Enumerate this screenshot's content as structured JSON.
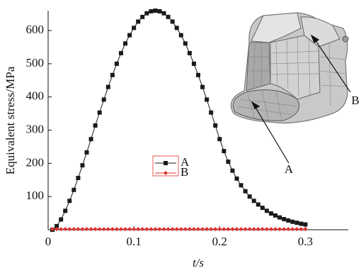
{
  "chart_data": {
    "type": "line",
    "x_label": "t/s",
    "y_label": "Equivalent stress/MPa",
    "x": [
      0.005,
      0.01,
      0.015,
      0.02,
      0.025,
      0.03,
      0.035,
      0.04,
      0.045,
      0.05,
      0.055,
      0.06,
      0.065,
      0.07,
      0.075,
      0.08,
      0.085,
      0.09,
      0.095,
      0.1,
      0.105,
      0.11,
      0.115,
      0.12,
      0.125,
      0.13,
      0.135,
      0.14,
      0.145,
      0.15,
      0.155,
      0.16,
      0.165,
      0.17,
      0.175,
      0.18,
      0.185,
      0.19,
      0.195,
      0.2,
      0.205,
      0.21,
      0.215,
      0.22,
      0.225,
      0.23,
      0.235,
      0.24,
      0.245,
      0.25,
      0.255,
      0.26,
      0.265,
      0.27,
      0.275,
      0.28,
      0.285,
      0.29,
      0.295,
      0.3
    ],
    "series": [
      {
        "name": "A",
        "color": "#1a1a1a",
        "marker": "square",
        "values": [
          0,
          11,
          31,
          57,
          87,
          120,
          156,
          194,
          233,
          273,
          314,
          353,
          392,
          430,
          466,
          500,
          532,
          561,
          586,
          608,
          627,
          641,
          652,
          658,
          660,
          658,
          652,
          641,
          627,
          608,
          586,
          561,
          532,
          500,
          466,
          430,
          392,
          353,
          314,
          273,
          237,
          205,
          178,
          154,
          134,
          116,
          100,
          87,
          76,
          66,
          57,
          49,
          43,
          37,
          32,
          28,
          24,
          21,
          18,
          16
        ]
      },
      {
        "name": "B",
        "color": "#e0302a",
        "marker": "diamond",
        "values": [
          2,
          2,
          2,
          2,
          2,
          2,
          2,
          2,
          2,
          2,
          2,
          2,
          2,
          2,
          2,
          2,
          2,
          2,
          2,
          2,
          2,
          2,
          2,
          2,
          2,
          2,
          2,
          2,
          2,
          2,
          2,
          2,
          2,
          2,
          2,
          2,
          2,
          2,
          2,
          2,
          2,
          2,
          2,
          2,
          2,
          2,
          2,
          2,
          2,
          2,
          2,
          2,
          2,
          2,
          2,
          2,
          2,
          2,
          2,
          2
        ]
      }
    ],
    "xlim": [
      0,
      0.35
    ],
    "xticks": [
      0,
      0.1,
      0.2,
      0.3
    ],
    "ylim": [
      0,
      660
    ],
    "yticks": [
      100,
      200,
      300,
      400,
      500,
      600
    ],
    "annotations": [
      "A",
      "B"
    ]
  }
}
